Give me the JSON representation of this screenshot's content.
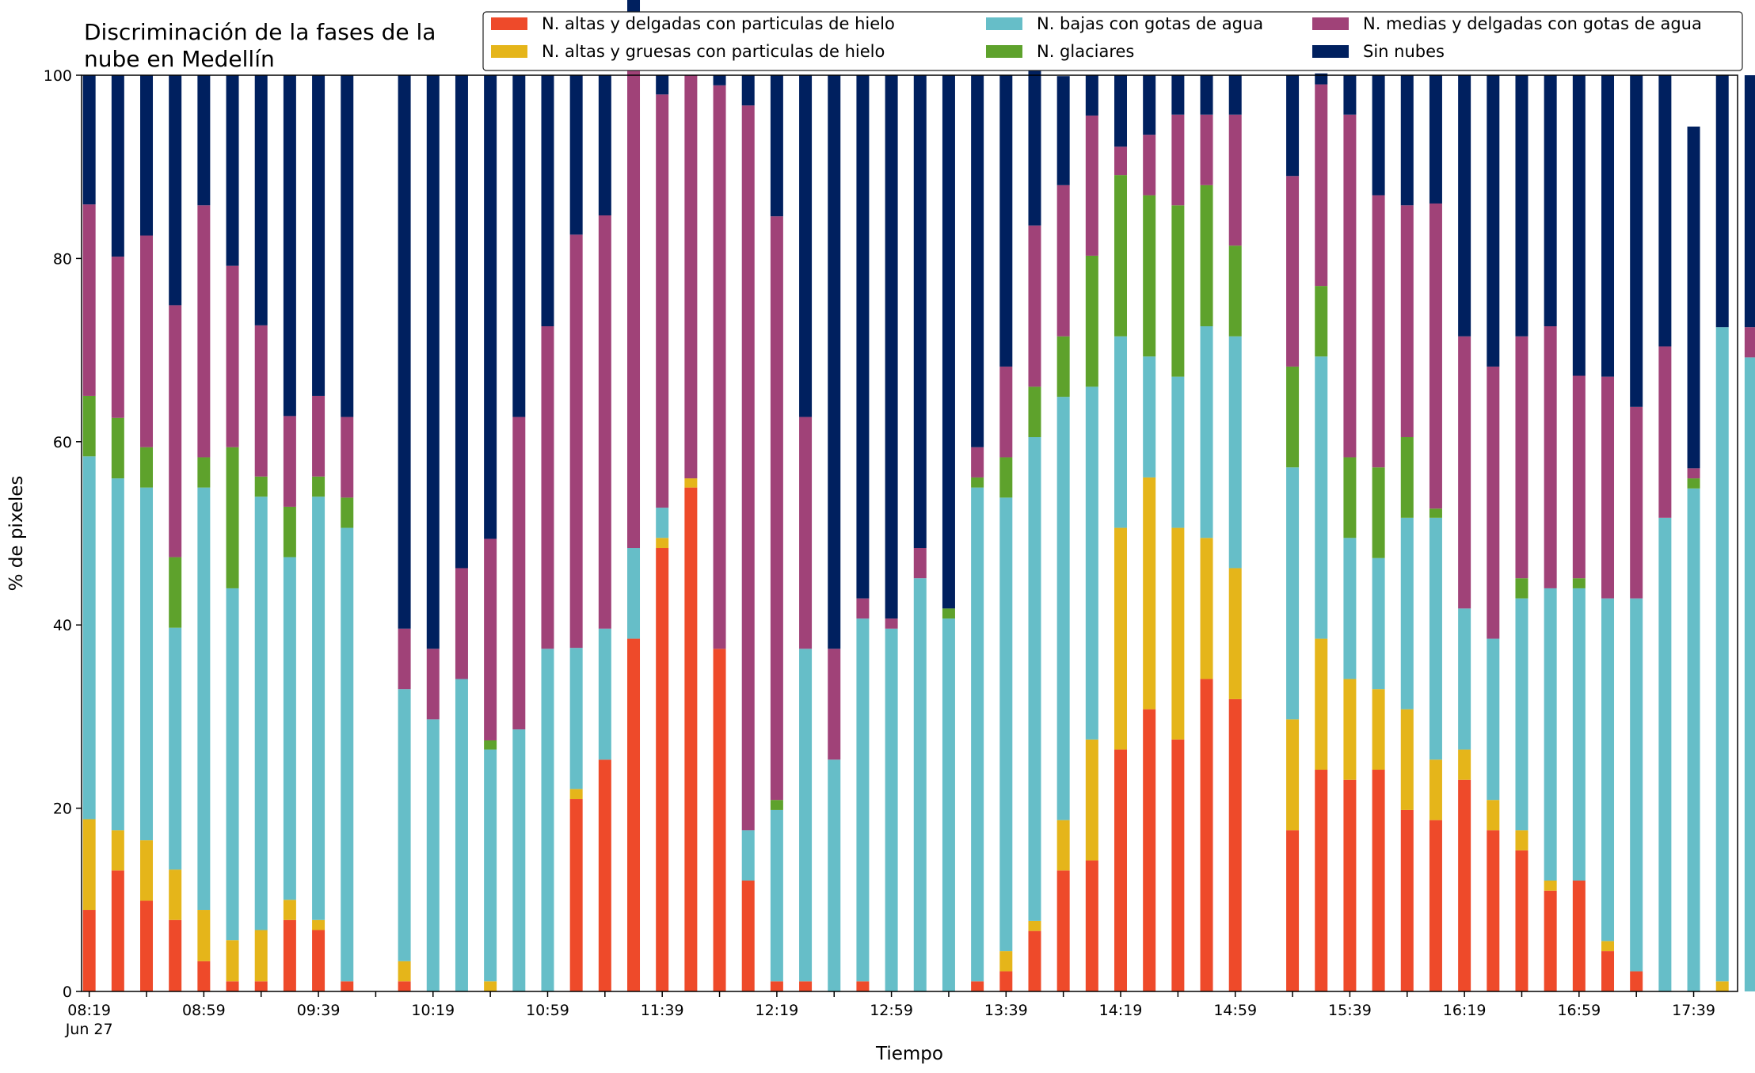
{
  "chart_data": {
    "type": "bar",
    "stacked": true,
    "title_lines": [
      "Discriminación de la fases de la",
      "nube en Medellín"
    ],
    "xlabel": "Tiempo",
    "ylabel": "% de pixeles",
    "ylim": [
      0,
      100
    ],
    "yticks": [
      0,
      20,
      40,
      60,
      80,
      100
    ],
    "grid": false,
    "legend_position": "top-right",
    "x_start_minutes": 499,
    "x_interval_minutes": 10,
    "x_axis_min_minutes": 496.33,
    "x_axis_max_minutes": 1074.33,
    "tick_labels": [
      {
        "minute": 499,
        "label": "08:19",
        "sub": "Jun 27"
      },
      {
        "minute": 539,
        "label": "08:59"
      },
      {
        "minute": 579,
        "label": "09:39"
      },
      {
        "minute": 619,
        "label": "10:19"
      },
      {
        "minute": 659,
        "label": "10:59"
      },
      {
        "minute": 699,
        "label": "11:39"
      },
      {
        "minute": 739,
        "label": "12:19"
      },
      {
        "minute": 779,
        "label": "12:59"
      },
      {
        "minute": 819,
        "label": "13:39"
      },
      {
        "minute": 859,
        "label": "14:19"
      },
      {
        "minute": 899,
        "label": "14:59"
      },
      {
        "minute": 939,
        "label": "15:39"
      },
      {
        "minute": 979,
        "label": "16:19"
      },
      {
        "minute": 1019,
        "label": "16:59"
      },
      {
        "minute": 1059,
        "label": "17:39"
      }
    ],
    "legend_columns": [
      [
        "altas_delgadas",
        "altas_gruesas"
      ],
      [
        "bajas",
        "glaciares"
      ],
      [
        "medias",
        "sin_nubes"
      ]
    ],
    "series": [
      {
        "key": "altas_delgadas",
        "name": "N. altas y delgadas con particulas de hielo",
        "color": "#ee4a2a",
        "values": [
          8.9,
          13.2,
          9.9,
          7.8,
          3.3,
          1.1,
          1.1,
          7.8,
          6.7,
          1.1,
          null,
          1.1,
          0,
          0,
          0,
          0,
          0,
          21,
          25.3,
          38.5,
          48.4,
          55,
          37.4,
          12.1,
          1.1,
          1.1,
          0,
          1.1,
          0,
          0,
          0,
          1.1,
          2.2,
          6.6,
          13.2,
          14.3,
          26.4,
          30.8,
          27.5,
          34.1,
          31.9,
          null,
          17.6,
          24.2,
          23.1,
          24.2,
          19.8,
          18.7,
          23.1,
          17.6,
          15.4,
          11,
          12.1,
          4.4,
          2.2,
          0,
          0,
          0,
          0
        ]
      },
      {
        "key": "altas_gruesas",
        "name": "N. altas y gruesas con particulas de hielo",
        "color": "#e5b51a",
        "values": [
          9.9,
          4.4,
          6.6,
          5.5,
          5.6,
          4.5,
          5.6,
          2.2,
          1.1,
          0,
          null,
          2.2,
          0,
          0,
          1.1,
          0,
          0,
          1.1,
          0,
          0,
          1.1,
          1,
          0,
          0,
          0,
          0,
          0,
          0,
          0,
          0,
          0,
          0,
          2.2,
          1.1,
          5.5,
          13.2,
          24.2,
          25.3,
          23.1,
          15.4,
          14.3,
          null,
          12.1,
          14.3,
          11,
          8.8,
          11,
          6.6,
          3.3,
          3.3,
          2.2,
          1.1,
          0,
          1.1,
          0,
          0,
          0,
          1.1,
          0
        ]
      },
      {
        "key": "bajas",
        "name": "N. bajas con gotas de agua",
        "color": "#66bec8",
        "values": [
          39.6,
          38.4,
          38.5,
          26.4,
          46.1,
          38.4,
          47.3,
          37.4,
          46.2,
          49.5,
          null,
          29.7,
          29.7,
          34.1,
          25.3,
          28.6,
          37.4,
          15.4,
          14.3,
          9.9,
          3.3,
          0,
          0,
          5.5,
          18.7,
          36.3,
          25.3,
          39.6,
          39.6,
          45.1,
          40.7,
          53.9,
          49.5,
          52.8,
          46.2,
          38.5,
          20.9,
          13.2,
          16.5,
          23.1,
          25.3,
          null,
          27.5,
          30.8,
          15.4,
          14.3,
          20.9,
          26.4,
          15.4,
          17.6,
          25.3,
          31.9,
          31.9,
          37.4,
          40.7,
          51.7,
          54.9,
          71.4,
          69.2
        ]
      },
      {
        "key": "glaciares",
        "name": "N. glaciares",
        "color": "#5ea22c",
        "values": [
          6.6,
          6.6,
          4.4,
          7.7,
          3.3,
          15.4,
          2.2,
          5.5,
          2.2,
          3.3,
          null,
          0,
          0,
          0,
          1,
          0,
          0,
          0,
          0,
          0,
          0,
          0,
          0,
          0,
          1.1,
          0,
          0,
          0,
          0,
          0,
          1.1,
          1.1,
          4.4,
          5.5,
          6.6,
          14.3,
          17.6,
          17.6,
          18.7,
          15.4,
          9.9,
          null,
          11,
          7.7,
          8.8,
          9.9,
          8.8,
          1,
          0,
          0,
          2.2,
          0,
          1.1,
          0,
          0,
          0,
          1.1,
          0,
          0
        ]
      },
      {
        "key": "medias",
        "name": "N. medias y delgadas con gotas de agua",
        "color": "#a04278",
        "values": [
          20.9,
          17.6,
          23.1,
          27.5,
          27.5,
          19.8,
          16.5,
          9.9,
          8.8,
          8.8,
          null,
          6.6,
          7.7,
          12.1,
          22,
          34.1,
          35.2,
          45.1,
          45.1,
          57.1,
          45.1,
          44,
          61.5,
          79.1,
          63.7,
          25.3,
          12.1,
          2.2,
          1.1,
          3.3,
          0,
          3.3,
          9.9,
          17.6,
          16.5,
          15.3,
          3.1,
          6.6,
          9.9,
          7.7,
          14.3,
          null,
          20.8,
          22,
          37.4,
          29.7,
          25.3,
          33.3,
          29.7,
          29.7,
          26.4,
          28.6,
          22.1,
          24.2,
          20.9,
          18.7,
          1.1,
          0,
          3.3
        ]
      },
      {
        "key": "sin_nubes",
        "name": "Sin nubes",
        "color": "#00205f",
        "values": [
          14.1,
          19.8,
          17.5,
          25.1,
          14.2,
          20.8,
          27.3,
          37.2,
          35,
          37.3,
          null,
          60.4,
          62.6,
          53.8,
          50.6,
          37.3,
          27.4,
          17.4,
          15.3,
          4.5,
          2.1,
          0,
          1.1,
          3.3,
          15.4,
          37.3,
          62.6,
          57.1,
          59.3,
          51.6,
          58.2,
          40.6,
          31.8,
          22,
          11.9,
          4.4,
          7.8,
          6.5,
          4.3,
          4.3,
          4.3,
          null,
          11,
          1.2,
          4.3,
          13.1,
          14.2,
          14,
          28.5,
          31.8,
          28.5,
          27.4,
          32.8,
          32.9,
          36.2,
          29.6,
          37.3,
          27.5,
          27.5
        ]
      }
    ]
  }
}
